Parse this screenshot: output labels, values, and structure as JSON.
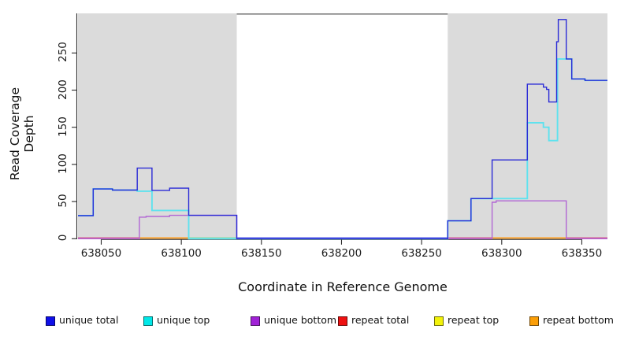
{
  "chart_data": {
    "type": "line",
    "title": "",
    "xlabel": "Coordinate in Reference Genome",
    "ylabel": "Read Coverage Depth",
    "xlim": [
      638035.5,
      638366
    ],
    "ylim": [
      0,
      303
    ],
    "x_ticks": [
      638050,
      638100,
      638150,
      638200,
      638250,
      638300,
      638350
    ],
    "y_ticks": [
      0,
      50,
      100,
      150,
      200,
      250
    ],
    "grid": false,
    "legend_position": "bottom",
    "panel_color": "#dbdbdb",
    "background_regions": [
      {
        "name": "covered-left",
        "x1": 638035.5,
        "x2": 638134.6,
        "color": "#dbdbdb"
      },
      {
        "name": "covered-right",
        "x1": 638266.3,
        "x2": 638366,
        "color": "#dbdbdb"
      }
    ],
    "masked_region": {
      "x1": 638134.6,
      "x2": 638266.3,
      "color": "#ffffff",
      "top_border_color": "#7f7f7f"
    },
    "series": [
      {
        "name": "unique total",
        "legend_color": "#0f0fe8",
        "line_color": "#2b2bd6",
        "width": 1.4,
        "points": [
          [
            638035.5,
            31
          ],
          [
            638045,
            31
          ],
          [
            638045,
            67
          ],
          [
            638057,
            67
          ],
          [
            638057,
            65.5
          ],
          [
            638072.5,
            65.5
          ],
          [
            638072.5,
            95
          ],
          [
            638081.7,
            95
          ],
          [
            638081.7,
            65
          ],
          [
            638092.7,
            65
          ],
          [
            638092.7,
            68
          ],
          [
            638104.6,
            68
          ],
          [
            638104.6,
            31.5
          ],
          [
            638134.6,
            31.5
          ],
          [
            638134.6,
            0
          ],
          [
            638266.3,
            0
          ],
          [
            638266.3,
            24
          ],
          [
            638280.8,
            24
          ],
          [
            638280.8,
            54
          ],
          [
            638294,
            54
          ],
          [
            638294,
            106
          ],
          [
            638316,
            106
          ],
          [
            638316,
            208
          ],
          [
            638326,
            208
          ],
          [
            638326,
            204
          ],
          [
            638328,
            204
          ],
          [
            638328,
            201
          ],
          [
            638329.4,
            201
          ],
          [
            638329.4,
            184
          ],
          [
            638334.3,
            184
          ],
          [
            638334.3,
            265
          ],
          [
            638335.3,
            265
          ],
          [
            638335.3,
            295
          ],
          [
            638340.3,
            295
          ],
          [
            638340.3,
            242
          ],
          [
            638343.7,
            242
          ],
          [
            638343.7,
            215
          ],
          [
            638352,
            215
          ],
          [
            638352,
            213
          ],
          [
            638366,
            213
          ]
        ]
      },
      {
        "name": "unique top",
        "legend_color": "#00e8e8",
        "line_color": "#5fe2ee",
        "width": 1.9,
        "points": [
          [
            638035.5,
            31
          ],
          [
            638045,
            31
          ],
          [
            638045,
            67
          ],
          [
            638057,
            67
          ],
          [
            638057,
            65.5
          ],
          [
            638072.5,
            65.5
          ],
          [
            638072.5,
            64
          ],
          [
            638081.7,
            64
          ],
          [
            638081.7,
            38
          ],
          [
            638104.6,
            38
          ],
          [
            638104.6,
            0
          ],
          [
            638266.3,
            0
          ],
          [
            638266.3,
            24
          ],
          [
            638280.8,
            24
          ],
          [
            638280.8,
            54
          ],
          [
            638316,
            54
          ],
          [
            638316,
            156
          ],
          [
            638326,
            156
          ],
          [
            638326,
            150
          ],
          [
            638329.4,
            150
          ],
          [
            638329.4,
            132
          ],
          [
            638334.8,
            132
          ],
          [
            638334.8,
            242
          ],
          [
            638343.7,
            242
          ],
          [
            638343.7,
            215
          ],
          [
            638352,
            215
          ],
          [
            638352,
            213
          ],
          [
            638366,
            213
          ]
        ]
      },
      {
        "name": "unique bottom",
        "legend_color": "#a021d6",
        "line_color": "#b266d4",
        "width": 1.4,
        "points": [
          [
            638035.5,
            0
          ],
          [
            638073.8,
            0
          ],
          [
            638073.8,
            29
          ],
          [
            638078,
            29
          ],
          [
            638078,
            30
          ],
          [
            638092.7,
            30
          ],
          [
            638092.7,
            31.5
          ],
          [
            638134.6,
            31.5
          ],
          [
            638134.6,
            0
          ],
          [
            638294,
            0
          ],
          [
            638294,
            49
          ],
          [
            638296.5,
            49
          ],
          [
            638296.5,
            51
          ],
          [
            638340.3,
            51
          ],
          [
            638340.3,
            0
          ],
          [
            638366,
            0
          ]
        ]
      },
      {
        "name": "repeat total",
        "legend_color": "#ee1111",
        "line_color": "#d55e8e",
        "width": 1.4,
        "points": [
          [
            638035.5,
            0
          ],
          [
            638366,
            0
          ]
        ]
      },
      {
        "name": "repeat top",
        "legend_color": "#f2f20a",
        "line_color": "#f2f20a",
        "width": 1.4,
        "points": [
          [
            638035.5,
            0
          ],
          [
            638366,
            0
          ]
        ]
      },
      {
        "name": "repeat bottom",
        "legend_color": "#fb9e07",
        "line_color": "#ff9d1e",
        "width": 1.4,
        "points": [
          [
            638035.5,
            0
          ],
          [
            638366,
            0
          ]
        ]
      }
    ],
    "baseline_segments": [
      {
        "x1": 638035.5,
        "x2": 638073.8,
        "color": "#d55e8e"
      },
      {
        "x1": 638073.8,
        "x2": 638104.6,
        "color": "#ff9d1e"
      },
      {
        "x1": 638104.6,
        "x2": 638134.6,
        "color": "#8ed89a"
      },
      {
        "x1": 638134.6,
        "x2": 638266.3,
        "color": "#5a50e8"
      },
      {
        "x1": 638266.3,
        "x2": 638294,
        "color": "#d55e8e"
      },
      {
        "x1": 638294,
        "x2": 638340.3,
        "color": "#ff9d1e"
      },
      {
        "x1": 638340.3,
        "x2": 638366,
        "color": "#d55e8e"
      }
    ]
  },
  "legend": {
    "items": [
      {
        "label": "unique total",
        "color": "#0f0fe8"
      },
      {
        "label": "unique top",
        "color": "#00e8e8"
      },
      {
        "label": "unique bottom",
        "color": "#a021d6"
      },
      {
        "label": "repeat total",
        "color": "#ee1111"
      },
      {
        "label": "repeat top",
        "color": "#f2f20a"
      },
      {
        "label": "repeat bottom",
        "color": "#fb9e07"
      }
    ]
  }
}
